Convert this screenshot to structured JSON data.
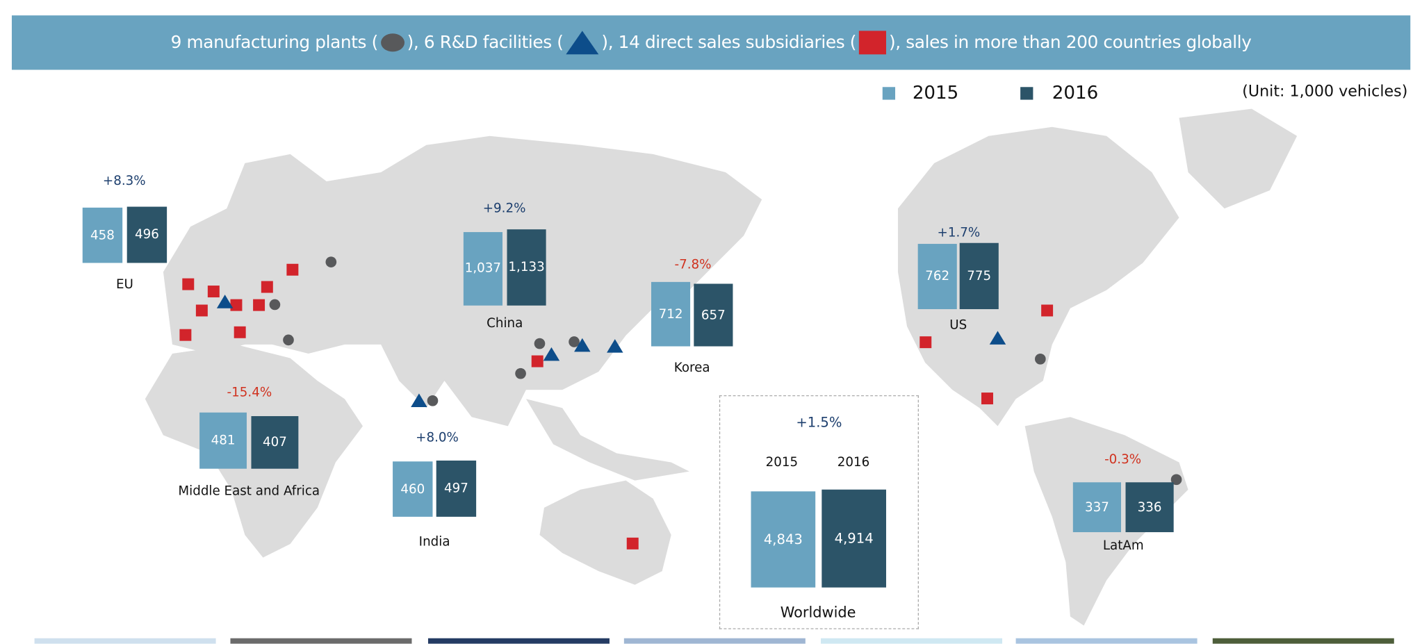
{
  "header": {
    "part1": "9 manufacturing plants (",
    "part2": "), 6 R&D facilities (",
    "part3": "), 14 direct sales subsidiaries (",
    "part4": "), sales in more than 200 countries globally",
    "icons": {
      "plant": "gray-circle",
      "rnd": "blue-triangle",
      "sales": "red-square"
    }
  },
  "legend": {
    "y2015": "2015",
    "y2016": "2016",
    "unit": "(Unit: 1,000 vehicles)"
  },
  "colors": {
    "y2015": "#69a3c0",
    "y2016": "#2c5468",
    "increase": "#1d3f6e",
    "decrease": "#d0321f",
    "plant": "#58595b",
    "rnd": "#0d4d8a",
    "sales": "#d2242b",
    "banner": "#69a3c0",
    "land": "#dcdcdc"
  },
  "chart_data": {
    "type": "bar",
    "series_names": [
      "2015",
      "2016"
    ],
    "unit": "1,000 vehicles",
    "regions": [
      {
        "name": "EU",
        "change": "+8.3%",
        "v2015": 458,
        "v2016": 496,
        "l2015": "458",
        "l2016": "496"
      },
      {
        "name": "China",
        "change": "+9.2%",
        "v2015": 1037,
        "v2016": 1133,
        "l2015": "1,037",
        "l2016": "1,133"
      },
      {
        "name": "Korea",
        "change": "-7.8%",
        "v2015": 712,
        "v2016": 657,
        "l2015": "712",
        "l2016": "657"
      },
      {
        "name": "US",
        "change": "+1.7%",
        "v2015": 762,
        "v2016": 775,
        "l2015": "762",
        "l2016": "775"
      },
      {
        "name": "Middle East and Africa",
        "change": "-15.4%",
        "v2015": 481,
        "v2016": 407,
        "l2015": "481",
        "l2016": "407"
      },
      {
        "name": "India",
        "change": "+8.0%",
        "v2015": 460,
        "v2016": 497,
        "l2015": "460",
        "l2016": "497"
      },
      {
        "name": "LatAm",
        "change": "-0.3%",
        "v2015": 337,
        "v2016": 336,
        "l2015": "337",
        "l2016": "336"
      }
    ],
    "worldwide": {
      "name": "Worldwide",
      "change": "+1.5%",
      "year1": "2015",
      "year2": "2016",
      "v2015": 4843,
      "v2016": 4914,
      "l2015": "4,843",
      "l2016": "4,914"
    }
  }
}
